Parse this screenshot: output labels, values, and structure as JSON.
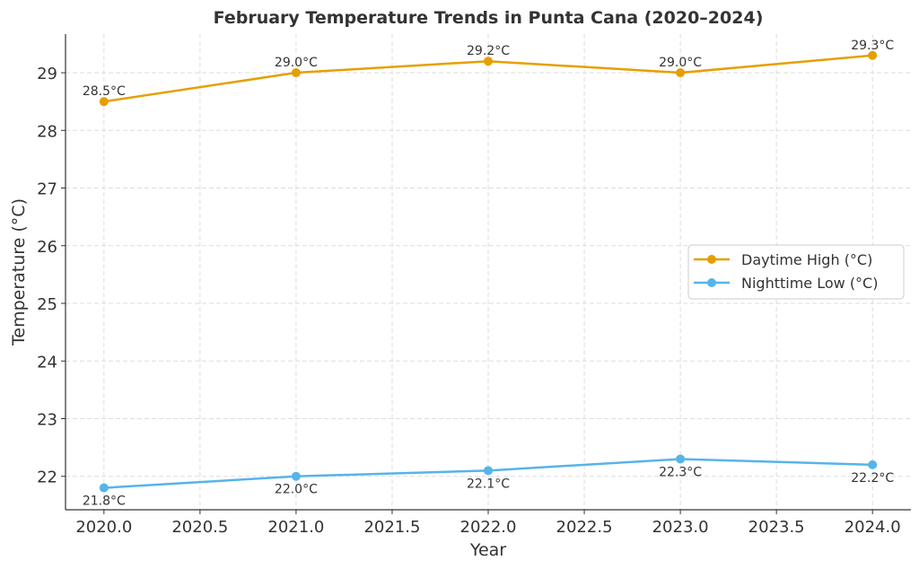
{
  "chart_data": {
    "type": "line",
    "title": "February Temperature Trends in Punta Cana (2020–2024)",
    "xlabel": "Year",
    "ylabel": "Temperature (°C)",
    "x": [
      2020,
      2021,
      2022,
      2023,
      2024
    ],
    "xlim": [
      2019.8,
      2024.2
    ],
    "ylim": [
      21.42,
      29.67
    ],
    "xticks": [
      2020.0,
      2020.5,
      2021.0,
      2021.5,
      2022.0,
      2022.5,
      2023.0,
      2023.5,
      2024.0
    ],
    "xtick_labels": [
      "2020.0",
      "2020.5",
      "2021.0",
      "2021.5",
      "2022.0",
      "2022.5",
      "2023.0",
      "2023.5",
      "2024.0"
    ],
    "yticks": [
      22,
      23,
      24,
      25,
      26,
      27,
      28,
      29
    ],
    "ytick_labels": [
      "22",
      "23",
      "24",
      "25",
      "26",
      "27",
      "28",
      "29"
    ],
    "grid": true,
    "legend_position": "center-right",
    "series": [
      {
        "name": "Daytime High (°C)",
        "color": "#E69F00",
        "values": [
          28.5,
          29.0,
          29.2,
          29.0,
          29.3
        ],
        "labels": [
          "28.5°C",
          "29.0°C",
          "29.2°C",
          "29.0°C",
          "29.3°C"
        ],
        "label_position": "above"
      },
      {
        "name": "Nighttime Low (°C)",
        "color": "#56B4E9",
        "values": [
          21.8,
          22.0,
          22.1,
          22.3,
          22.2
        ],
        "labels": [
          "21.8°C",
          "22.0°C",
          "22.1°C",
          "22.3°C",
          "22.2°C"
        ],
        "label_position": "below"
      }
    ]
  }
}
